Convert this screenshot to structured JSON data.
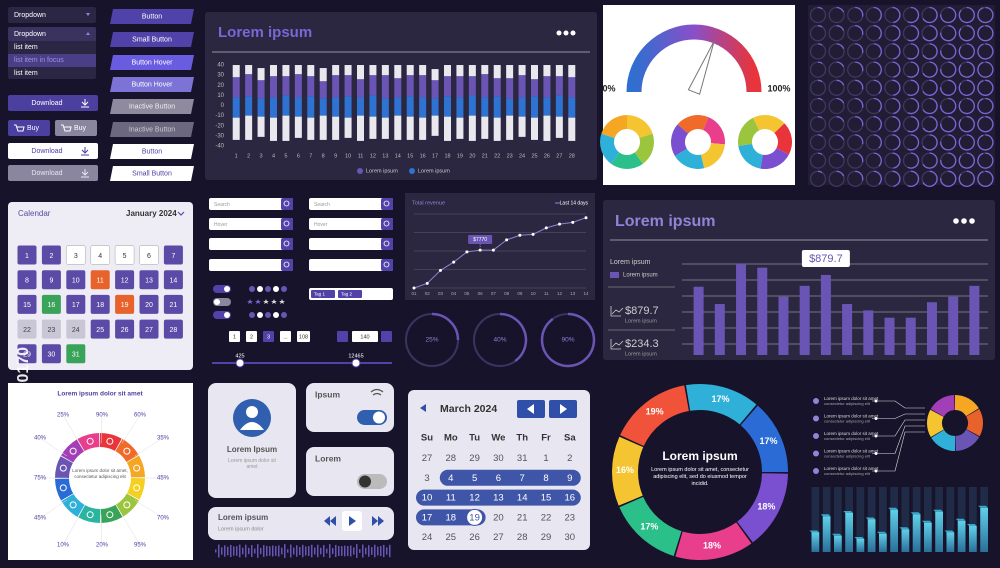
{
  "watermark": "Adobe Stock | #1359330170",
  "buttons": {
    "dropdown": "Dropdown",
    "dropdown_open": "Dropdown",
    "list_items": [
      "list item",
      "list item in focus",
      "list item"
    ],
    "left": [
      "Download",
      "Buy",
      "Buy",
      "Download",
      "Download"
    ],
    "right": [
      "Button",
      "Small Button",
      "Button Hover",
      "Button Hover",
      "Inactive Button",
      "Inactive Button",
      "Button",
      "Small Button"
    ]
  },
  "calendar": {
    "label": "Calendar",
    "month": "January 2024",
    "days": [
      "1",
      "2",
      "3",
      "4",
      "5",
      "6",
      "7",
      "8",
      "9",
      "10",
      "11",
      "12",
      "13",
      "14",
      "15",
      "16",
      "17",
      "18",
      "19",
      "20",
      "21",
      "22",
      "23",
      "24",
      "25",
      "26",
      "27",
      "28",
      "29",
      "30",
      "31"
    ]
  },
  "infographic": {
    "title": "Lorem ipsum dolor sit amet",
    "center": "Lorem ipsum dolor sit amet, consectetur adipiscing elit",
    "labels": [
      "25%",
      "90%",
      "60%",
      "40%",
      "35%",
      "75%",
      "45%",
      "45%",
      "70%",
      "10%",
      "20%",
      "95%"
    ]
  },
  "forms": {
    "search": [
      "Search",
      "Search"
    ],
    "hover": [
      "Hover",
      "Hover"
    ],
    "tags": [
      "Tag 1",
      "Tag 2"
    ],
    "pagination": [
      "1",
      "2",
      "3",
      "...",
      "108"
    ],
    "stepper": "140",
    "slider": [
      425,
      12465
    ]
  },
  "cards": {
    "profile": {
      "name": "Lorem Ipsum",
      "text": "Lorem ipsum dolor sit amet"
    },
    "toggles": [
      "Ipsum",
      "Lorem"
    ],
    "player": {
      "title": "Lorem ipsum",
      "subtitle": "Lorem ipsum dolor"
    }
  },
  "march": {
    "month": "March 2024",
    "weekdays": [
      "Su",
      "Mo",
      "Tu",
      "We",
      "Th",
      "Fr",
      "Sa"
    ],
    "rows": [
      [
        "27",
        "28",
        "29",
        "30",
        "31",
        "1",
        "2"
      ],
      [
        "3",
        "4",
        "5",
        "6",
        "7",
        "8",
        "9"
      ],
      [
        "10",
        "11",
        "12",
        "13",
        "14",
        "15",
        "16"
      ],
      [
        "17",
        "18",
        "19",
        "20",
        "21",
        "22",
        "23"
      ],
      [
        "24",
        "25",
        "26",
        "27",
        "28",
        "29",
        "30"
      ]
    ]
  },
  "info_list": {
    "items": [
      {
        "title": "Lorem ipsum dolor sit amet",
        "text": "consectetur adipiscing elit"
      },
      {
        "title": "Lorem ipsum dolor sit amet",
        "text": "consectetur adipiscing elit"
      },
      {
        "title": "Lorem ipsum dolor sit amet",
        "text": "consectetur adipiscing elit"
      },
      {
        "title": "Lorem ipsum dolor sit amet",
        "text": "consectetur adipiscing elit"
      },
      {
        "title": "Lorem ipsum dolor sit amet",
        "text": "consectetur adipiscing elit"
      }
    ]
  },
  "chart_data": [
    {
      "type": "bar",
      "stacked": true,
      "title": "Lorem ipsum",
      "categories": [
        "1",
        "2",
        "3",
        "4",
        "5",
        "6",
        "7",
        "8",
        "9",
        "10",
        "11",
        "12",
        "13",
        "14",
        "15",
        "16",
        "17",
        "18",
        "19",
        "20",
        "21",
        "22",
        "23",
        "24",
        "25",
        "26",
        "27",
        "28"
      ],
      "ylim": [
        -42,
        42
      ],
      "yticks": [
        40,
        30,
        20,
        10,
        0,
        -10,
        -20,
        -30,
        -40
      ],
      "series": [
        {
          "name": "Lorem ipsum",
          "color": "#6a55b5",
          "values": [
            20,
            22,
            18,
            21,
            19,
            23,
            20,
            17,
            22,
            21,
            18,
            20,
            23,
            19,
            21,
            22,
            18,
            20,
            21,
            19,
            23,
            18,
            20,
            22,
            17,
            21,
            19,
            20
          ]
        },
        {
          "name": "Lorem ipsum",
          "color": "#2e73d2",
          "values": [
            8,
            9,
            7,
            8,
            10,
            8,
            9,
            7,
            8,
            9,
            8,
            10,
            7,
            8,
            9,
            8,
            7,
            9,
            8,
            10,
            8,
            9,
            7,
            8,
            9,
            8,
            10,
            8
          ]
        },
        {
          "color": "#e8e8ee",
          "values": [
            12,
            9,
            12,
            11,
            11,
            9,
            11,
            13,
            10,
            10,
            14,
            10,
            10,
            13,
            10,
            10,
            11,
            11,
            11,
            11,
            9,
            13,
            13,
            10,
            14,
            11,
            11,
            12
          ]
        },
        {
          "color": "#2e73d2",
          "values": [
            -12,
            -10,
            -11,
            -12,
            -10,
            -11,
            -12,
            -10,
            -11,
            -12,
            -10,
            -11,
            -12,
            -10,
            -11,
            -12,
            -10,
            -11,
            -12,
            -10,
            -11,
            -12,
            -10,
            -11,
            -12,
            -10,
            -11,
            -12
          ]
        },
        {
          "color": "#e8e8ee",
          "values": [
            -22,
            -24,
            -20,
            -23,
            -25,
            -21,
            -22,
            -24,
            -23,
            -20,
            -25,
            -22,
            -21,
            -24,
            -23,
            -22,
            -20,
            -24,
            -21,
            -25,
            -22,
            -23,
            -24,
            -20,
            -22,
            -25,
            -21,
            -23
          ]
        }
      ]
    },
    {
      "type": "gauge",
      "value": 62,
      "ylim": [
        0,
        100
      ],
      "yticks": [
        {
          "value": 0,
          "label": "0%"
        },
        {
          "value": 100,
          "label": "100%"
        }
      ]
    },
    {
      "type": "line",
      "title": "Total revenue",
      "legend_label": "Last 14 days",
      "categories": [
        "01",
        "02",
        "03",
        "04",
        "05",
        "06",
        "07",
        "08",
        "09",
        "10",
        "11",
        "12",
        "13",
        "14"
      ],
      "values": [
        0,
        5,
        19,
        28,
        39,
        41,
        41,
        52,
        57,
        58,
        65,
        69,
        71,
        76
      ],
      "ylim": [
        0,
        80
      ],
      "color": "#8f84d6",
      "annotation": "$7770"
    },
    {
      "type": "progress",
      "values": [
        25,
        40,
        90
      ],
      "value_labels": [
        "25%",
        "40%",
        "90%"
      ],
      "ylim": [
        0,
        100
      ],
      "color": "#6a55b5"
    },
    {
      "type": "bar",
      "title": "Lorem ipsum",
      "legend_title": "Lorem ipsum",
      "grid": true,
      "ylim": [
        0,
        1000
      ],
      "series": [
        {
          "name": "Lorem ipsum",
          "color": "#6a55b5",
          "values": [
            750,
            560,
            1000,
            960,
            640,
            760,
            879.7,
            560,
            490,
            410,
            410,
            580,
            640,
            760
          ]
        }
      ],
      "annotation": "$879.7",
      "stats": [
        {
          "amount": "$879.7",
          "label": "Lorem ipsum"
        },
        {
          "amount": "$234.3",
          "label": "Lorem ipsum"
        }
      ]
    },
    {
      "type": "donut",
      "title": "Lorem ipsum",
      "subtitle": "Lorem ipsum dolor sit amet, consectetur adipiscing elit, sed do eiusmod tempor incidid.",
      "values": [
        17,
        17,
        18,
        18,
        17,
        16,
        19
      ],
      "value_labels": [
        "17%",
        "17%",
        "18%",
        "18%",
        "17%",
        "16%",
        "19%"
      ],
      "colors": [
        "#2fb0d8",
        "#2a6bd6",
        "#7a4fd0",
        "#e83e8c",
        "#2bbf8a",
        "#f5c531",
        "#f0523a"
      ]
    },
    {
      "type": "bar",
      "style": "3d",
      "values": [
        30,
        55,
        25,
        60,
        20,
        50,
        28,
        65,
        35,
        58,
        45,
        62,
        30,
        48,
        40,
        68
      ],
      "ylim": [
        0,
        100
      ],
      "color": "#3aa6c9"
    }
  ]
}
